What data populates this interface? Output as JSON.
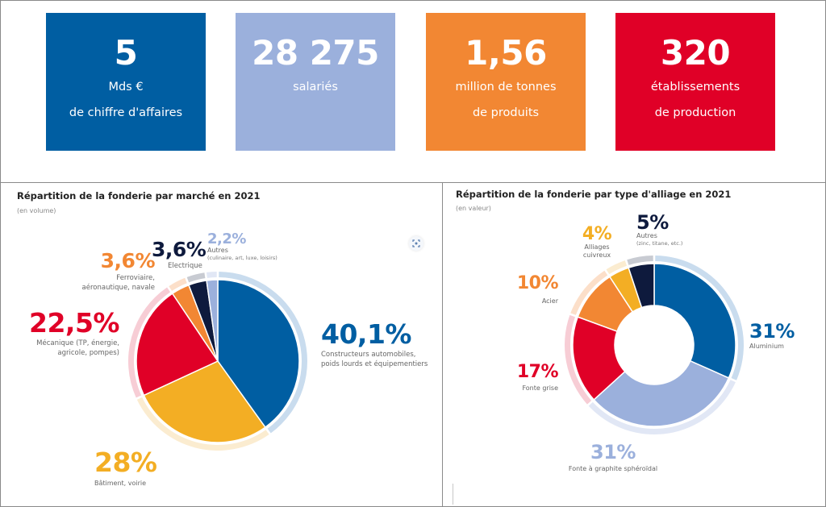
{
  "kpis": [
    {
      "value": "5",
      "line1": "Mds €",
      "line2": "de chiffre d'affaires",
      "color": "#005ea2"
    },
    {
      "value": "28 275",
      "line1": "salariés",
      "line2": "",
      "color": "#9bb0dc"
    },
    {
      "value": "1,56",
      "line1": "million de tonnes",
      "line2": "de produits",
      "color": "#f28733"
    },
    {
      "value": "320",
      "line1": "établissements",
      "line2": "de production",
      "color": "#e00027"
    }
  ],
  "chart_data": [
    {
      "type": "pie",
      "title": "Répartition de la fonderie par marché en 2021",
      "subtitle": "(en volume)",
      "unit": "%",
      "categories": [
        "Constructeurs automobiles, poids lourds et équipementiers",
        "Bâtiment, voirie",
        "Mécanique (TP, énergie, agricole, pompes)",
        "Ferroviaire, aéronautique, navale",
        "Electrique",
        "Autres (culinaire, art, luxe, loisirs)"
      ],
      "values": [
        40.1,
        28,
        22.5,
        3.6,
        3.6,
        2.2
      ],
      "labels": [
        {
          "pct": "40,1%",
          "desc": [
            "Constructeurs automobiles,",
            "poids lourds et équipementiers"
          ]
        },
        {
          "pct": "28%",
          "desc": [
            "Bâtiment, voirie"
          ]
        },
        {
          "pct": "22,5%",
          "desc": [
            "Mécanique (TP, énergie,",
            "agricole, pompes)"
          ]
        },
        {
          "pct": "3,6%",
          "desc": [
            "Ferroviaire,",
            "aéronautique, navale"
          ]
        },
        {
          "pct": "3,6%",
          "desc": [
            "Electrique"
          ]
        },
        {
          "pct": "2,2%",
          "desc": [
            "Autres",
            "(culinaire, art,  luxe, loisirs)"
          ]
        }
      ],
      "colors": [
        "#005ea2",
        "#f3ae24",
        "#e00027",
        "#f28733",
        "#0e1a3d",
        "#9bb0dc"
      ],
      "ring_colors": [
        "#c9dcee",
        "#fbecd0",
        "#f7cdd5",
        "#fcdfc9",
        "#c8cbd2",
        "#e1e7f5"
      ],
      "donut": false
    },
    {
      "type": "pie",
      "title": "Répartition de la fonderie par type d'alliage en 2021",
      "subtitle": "(en valeur)",
      "unit": "%",
      "categories": [
        "Aluminium",
        "Fonte à graphite sphéroïdal",
        "Fonte grise",
        "Acier",
        "Alliages cuivreux",
        "Autres (zinc, titane, etc.)"
      ],
      "values": [
        31,
        31,
        17,
        10,
        4,
        5
      ],
      "labels": [
        {
          "pct": "31%",
          "desc": [
            "Aluminium"
          ]
        },
        {
          "pct": "31%",
          "desc": [
            "Fonte à graphite sphéroïdal"
          ]
        },
        {
          "pct": "17%",
          "desc": [
            "Fonte grise"
          ]
        },
        {
          "pct": "10%",
          "desc": [
            "Acier"
          ]
        },
        {
          "pct": "4%",
          "desc": [
            "Alliages",
            "cuivreux"
          ]
        },
        {
          "pct": "5%",
          "desc": [
            "Autres",
            "(zinc, titane, etc.)"
          ]
        }
      ],
      "colors": [
        "#005ea2",
        "#9bb0dc",
        "#e00027",
        "#f28733",
        "#f3ae24",
        "#0e1a3d"
      ],
      "ring_colors": [
        "#c9dcee",
        "#e1e7f5",
        "#f7cdd5",
        "#fcdfc9",
        "#fbecd0",
        "#c8cbd2"
      ],
      "donut": true
    }
  ],
  "icons": {
    "focus": "focus-expand-icon"
  }
}
